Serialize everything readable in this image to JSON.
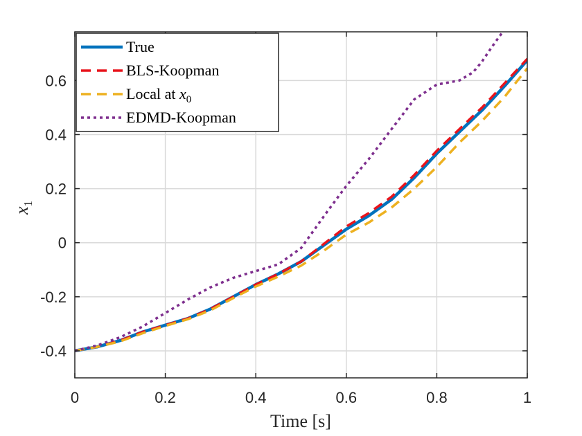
{
  "chart_data": {
    "type": "line",
    "xlabel": "Time [s]",
    "ylabel_main": "x",
    "ylabel_sub": "1",
    "xlim": [
      0,
      1
    ],
    "ylim": [
      -0.5,
      0.78
    ],
    "xticks": [
      0,
      0.2,
      0.4,
      0.6,
      0.8,
      1
    ],
    "xtick_labels": [
      "0",
      "0.2",
      "0.4",
      "0.6",
      "0.8",
      "1"
    ],
    "yticks": [
      -0.4,
      -0.2,
      0,
      0.2,
      0.4,
      0.6
    ],
    "ytick_labels": [
      "-0.4",
      "-0.2",
      "0",
      "0.2",
      "0.4",
      "0.6"
    ],
    "grid": true,
    "legend_position": "top-left",
    "series": [
      {
        "name": "True",
        "label_main": "True",
        "label_sub": "",
        "color": "#0072BD",
        "style": "solid",
        "x": [
          0,
          0.05,
          0.1,
          0.15,
          0.2,
          0.25,
          0.3,
          0.35,
          0.4,
          0.45,
          0.5,
          0.55,
          0.6,
          0.65,
          0.7,
          0.75,
          0.8,
          0.85,
          0.9,
          0.95,
          1.0
        ],
        "y": [
          -0.4,
          -0.385,
          -0.362,
          -0.33,
          -0.305,
          -0.28,
          -0.245,
          -0.2,
          -0.155,
          -0.115,
          -0.07,
          -0.01,
          0.05,
          0.1,
          0.16,
          0.24,
          0.33,
          0.41,
          0.49,
          0.58,
          0.675
        ]
      },
      {
        "name": "BLS-Koopman",
        "label_main": "BLS-Koopman",
        "label_sub": "",
        "color": "#E8141C",
        "style": "dashed",
        "x": [
          0,
          0.05,
          0.1,
          0.15,
          0.2,
          0.25,
          0.3,
          0.35,
          0.4,
          0.45,
          0.5,
          0.55,
          0.6,
          0.65,
          0.7,
          0.75,
          0.8,
          0.85,
          0.9,
          0.95,
          1.0
        ],
        "y": [
          -0.4,
          -0.385,
          -0.362,
          -0.33,
          -0.305,
          -0.28,
          -0.245,
          -0.2,
          -0.155,
          -0.115,
          -0.07,
          -0.005,
          0.06,
          0.11,
          0.17,
          0.25,
          0.34,
          0.42,
          0.5,
          0.59,
          0.68
        ]
      },
      {
        "name": "Local at x0",
        "label_main": "Local at ",
        "label_sub": "0",
        "label_var": "x",
        "color": "#EDB120",
        "style": "dashed",
        "x": [
          0,
          0.05,
          0.1,
          0.15,
          0.2,
          0.25,
          0.3,
          0.35,
          0.4,
          0.45,
          0.5,
          0.55,
          0.6,
          0.65,
          0.7,
          0.75,
          0.8,
          0.85,
          0.9,
          0.95,
          1.0
        ],
        "y": [
          -0.4,
          -0.385,
          -0.365,
          -0.335,
          -0.308,
          -0.283,
          -0.25,
          -0.205,
          -0.162,
          -0.125,
          -0.085,
          -0.03,
          0.03,
          0.075,
          0.13,
          0.2,
          0.28,
          0.37,
          0.45,
          0.54,
          0.645
        ]
      },
      {
        "name": "EDMD-Koopman",
        "label_main": "EDMD-Koopman",
        "label_sub": "",
        "color": "#7E2F8E",
        "style": "dotted",
        "x": [
          0,
          0.05,
          0.1,
          0.15,
          0.2,
          0.25,
          0.3,
          0.35,
          0.4,
          0.45,
          0.5,
          0.53,
          0.56,
          0.6,
          0.65,
          0.7,
          0.75,
          0.8,
          0.85,
          0.88,
          0.9,
          0.92,
          0.95
        ],
        "y": [
          -0.4,
          -0.38,
          -0.35,
          -0.31,
          -0.26,
          -0.21,
          -0.165,
          -0.13,
          -0.105,
          -0.08,
          -0.02,
          0.05,
          0.12,
          0.21,
          0.31,
          0.42,
          0.53,
          0.585,
          0.6,
          0.63,
          0.67,
          0.72,
          0.79
        ]
      }
    ]
  }
}
